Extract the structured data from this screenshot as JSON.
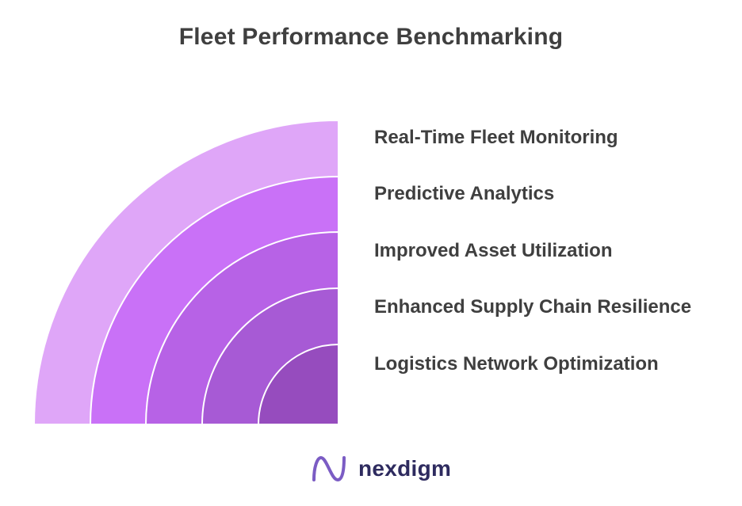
{
  "title": "Fleet Performance Benchmarking",
  "layers": [
    {
      "label": "Real-Time Fleet Monitoring",
      "color": "#dfa6f8"
    },
    {
      "label": "Predictive Analytics",
      "color": "#c971f7"
    },
    {
      "label": "Improved Asset Utilization",
      "color": "#b762e6"
    },
    {
      "label": "Enhanced Supply Chain Resilience",
      "color": "#a75ad5"
    },
    {
      "label": "Logistics Network Optimization",
      "color": "#964cbe"
    }
  ],
  "brand": {
    "name": "nexdigm",
    "logo_icon": "nexdigm-n-logo-icon",
    "logo_color": "#7b5cc4",
    "text_color": "#2e2b5f"
  }
}
